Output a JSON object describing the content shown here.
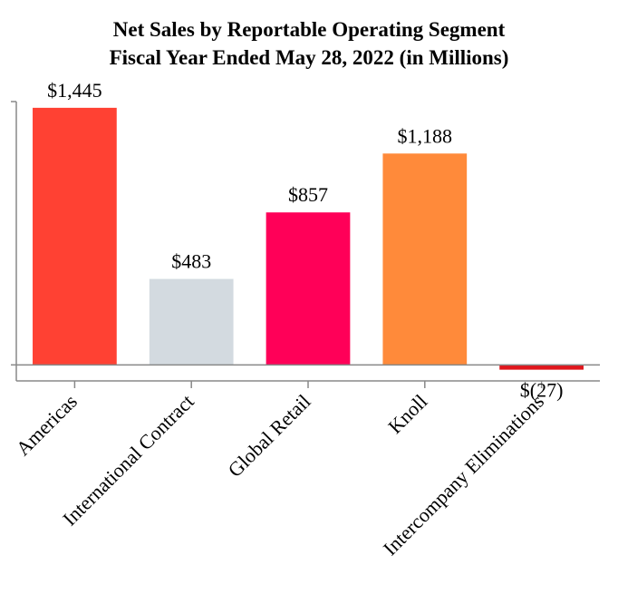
{
  "chart_data": {
    "type": "bar",
    "title": "Net Sales by Reportable Operating Segment",
    "subtitle": "Fiscal Year Ended May 28, 2022 (in Millions)",
    "xlabel": "",
    "ylabel": "",
    "ylim": [
      -90,
      1480
    ],
    "grid": false,
    "legend": "none",
    "categories": [
      "Americas",
      "International Contract",
      "Global Retail",
      "Knoll",
      "Intercompany Eliminations"
    ],
    "values": [
      1445,
      483,
      857,
      1188,
      -27
    ],
    "data_labels": [
      "$1,445",
      "$483",
      "$857",
      "$1,188",
      "$(27)"
    ],
    "colors": [
      "#ff4133",
      "#d3dae0",
      "#ff0058",
      "#ff8a3a",
      "#e0161c"
    ]
  }
}
